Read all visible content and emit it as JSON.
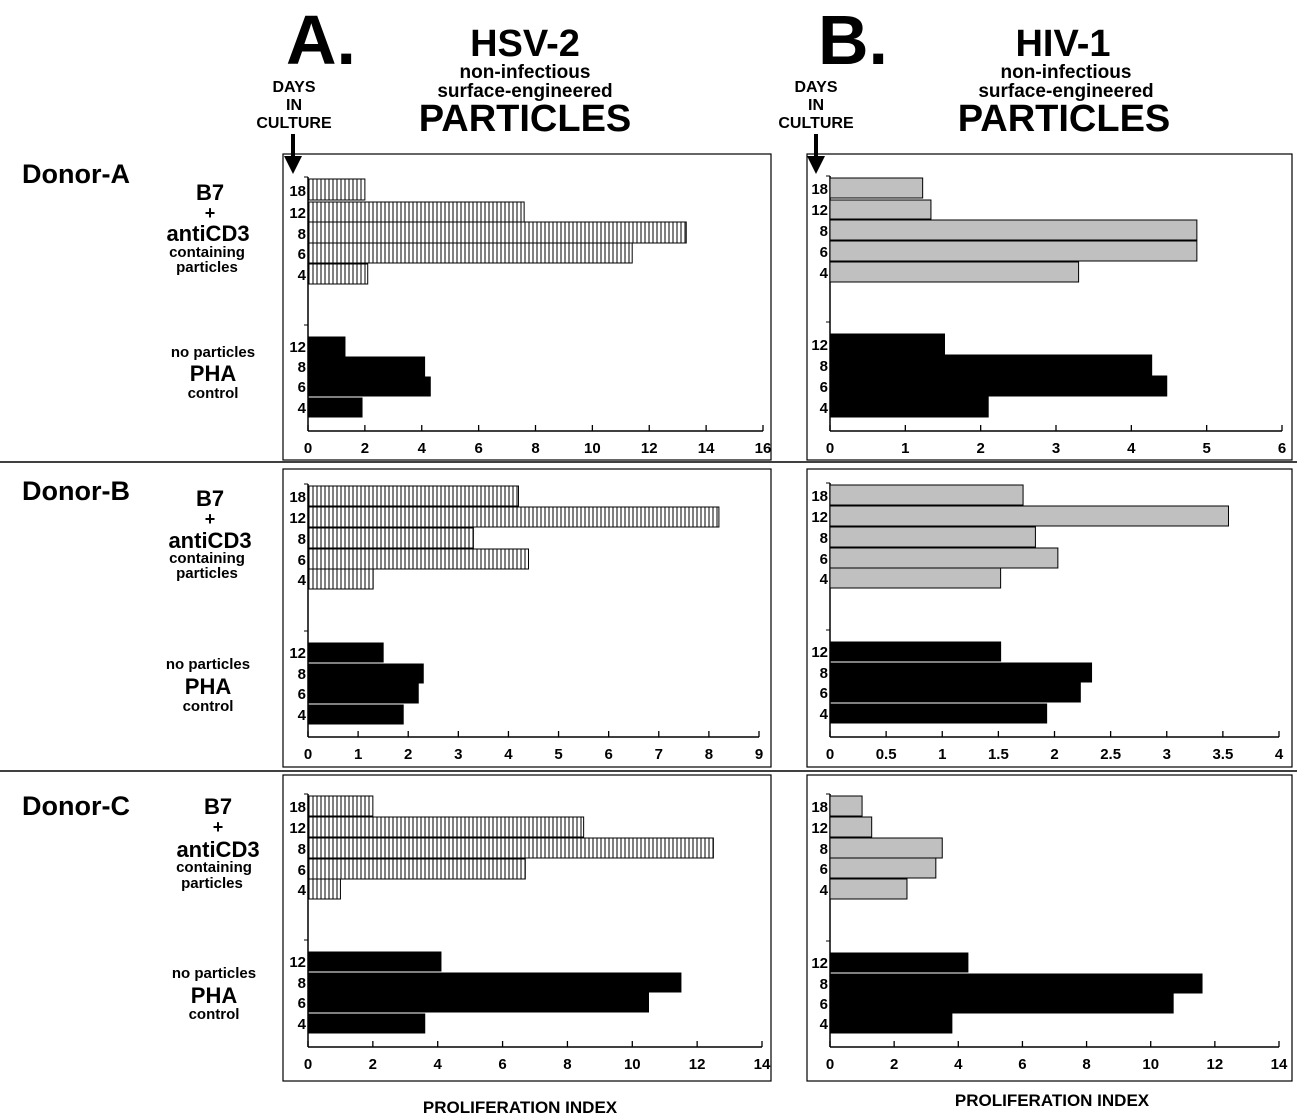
{
  "panels": [
    {
      "letter": "A.",
      "virus": "HSV-2",
      "subtitle_lines": [
        "non-infectious",
        "surface-engineered"
      ],
      "particles": "PARTICLES",
      "days_lines": [
        "DAYS",
        "IN",
        "CULTURE"
      ],
      "style": "hatched"
    },
    {
      "letter": "B.",
      "virus": "HIV-1",
      "subtitle_lines": [
        "non-infectious",
        "surface-engineered"
      ],
      "particles": "PARTICLES",
      "days_lines": [
        "DAYS",
        "IN",
        "CULTURE"
      ],
      "style": "gray"
    }
  ],
  "rows": [
    {
      "donor": "Donor-A",
      "group1": {
        "lines": [
          "B7",
          "+",
          "antiCD3",
          "containing",
          "particles"
        ]
      },
      "group2": {
        "lines": [
          "no particles",
          "PHA",
          "control"
        ]
      }
    },
    {
      "donor": "Donor-B",
      "group1": {
        "lines": [
          "B7",
          "+",
          "antiCD3",
          "containing",
          "particles"
        ]
      },
      "group2": {
        "lines": [
          "no particles",
          "PHA",
          "control"
        ]
      }
    },
    {
      "donor": "Donor-C",
      "group1": {
        "lines": [
          "B7",
          "+",
          "antiCD3",
          "containing",
          "particles"
        ]
      },
      "group2": {
        "lines": [
          "no particles",
          "PHA",
          "control"
        ]
      }
    }
  ],
  "xlabels": [
    "PROLIFERATION INDEX",
    "PROLIFERATION INDEX"
  ],
  "colors": {
    "gray_fill": "#c0c0c0",
    "black_fill": "#000000",
    "hatch_fill": "#ffffff"
  },
  "chart_data": [
    {
      "type": "bar",
      "orientation": "horizontal",
      "panel": "A",
      "donor": "Donor-A",
      "xlim": [
        0,
        16
      ],
      "xticks": [
        "0",
        "2",
        "4",
        "6",
        "8",
        "10",
        "12",
        "14",
        "16"
      ],
      "groups": [
        {
          "categories": [
            "18",
            "12",
            "8",
            "6",
            "4"
          ],
          "values": [
            2.0,
            7.6,
            13.3,
            11.4,
            2.1
          ]
        },
        {
          "categories": [
            "12",
            "8",
            "6",
            "4"
          ],
          "values": [
            1.3,
            4.1,
            4.3,
            1.9
          ]
        }
      ]
    },
    {
      "type": "bar",
      "orientation": "horizontal",
      "panel": "B",
      "donor": "Donor-A",
      "xlim": [
        0,
        6
      ],
      "xticks": [
        "0",
        "1",
        "2",
        "3",
        "4",
        "5",
        "6"
      ],
      "groups": [
        {
          "categories": [
            "18",
            "12",
            "8",
            "6",
            "4"
          ],
          "values": [
            1.23,
            1.34,
            4.87,
            4.87,
            3.3
          ]
        },
        {
          "categories": [
            "12",
            "8",
            "6",
            "4"
          ],
          "values": [
            1.52,
            4.27,
            4.47,
            2.1
          ]
        }
      ]
    },
    {
      "type": "bar",
      "orientation": "horizontal",
      "panel": "A",
      "donor": "Donor-B",
      "xlim": [
        0,
        9
      ],
      "xticks": [
        "0",
        "1",
        "2",
        "3",
        "4",
        "5",
        "6",
        "7",
        "8",
        "9"
      ],
      "groups": [
        {
          "categories": [
            "18",
            "12",
            "8",
            "6",
            "4"
          ],
          "values": [
            4.2,
            8.2,
            3.3,
            4.4,
            1.3
          ]
        },
        {
          "categories": [
            "12",
            "8",
            "6",
            "4"
          ],
          "values": [
            1.5,
            2.3,
            2.2,
            1.9
          ]
        }
      ]
    },
    {
      "type": "bar",
      "orientation": "horizontal",
      "panel": "B",
      "donor": "Donor-B",
      "xlim": [
        0,
        4
      ],
      "xticks": [
        "0",
        "0.5",
        "1",
        "1.5",
        "2",
        "2.5",
        "3",
        "3.5",
        "4"
      ],
      "groups": [
        {
          "categories": [
            "18",
            "12",
            "8",
            "6",
            "4"
          ],
          "values": [
            1.72,
            3.55,
            1.83,
            2.03,
            1.52
          ]
        },
        {
          "categories": [
            "12",
            "8",
            "6",
            "4"
          ],
          "values": [
            1.52,
            2.33,
            2.23,
            1.93
          ]
        }
      ]
    },
    {
      "type": "bar",
      "orientation": "horizontal",
      "panel": "A",
      "donor": "Donor-C",
      "xlim": [
        0,
        14
      ],
      "xticks": [
        "0",
        "2",
        "4",
        "6",
        "8",
        "10",
        "12",
        "14"
      ],
      "groups": [
        {
          "categories": [
            "18",
            "12",
            "8",
            "6",
            "4"
          ],
          "values": [
            2.0,
            8.5,
            12.5,
            6.7,
            1.0
          ]
        },
        {
          "categories": [
            "12",
            "8",
            "6",
            "4"
          ],
          "values": [
            4.1,
            11.5,
            10.5,
            3.6
          ]
        }
      ]
    },
    {
      "type": "bar",
      "orientation": "horizontal",
      "panel": "B",
      "donor": "Donor-C",
      "xlim": [
        0,
        14
      ],
      "xticks": [
        "0",
        "2",
        "4",
        "6",
        "8",
        "10",
        "12",
        "14"
      ],
      "groups": [
        {
          "categories": [
            "18",
            "12",
            "8",
            "6",
            "4"
          ],
          "values": [
            1.0,
            1.3,
            3.5,
            3.3,
            2.4
          ]
        },
        {
          "categories": [
            "12",
            "8",
            "6",
            "4"
          ],
          "values": [
            4.3,
            11.6,
            10.7,
            3.8
          ]
        }
      ]
    }
  ]
}
